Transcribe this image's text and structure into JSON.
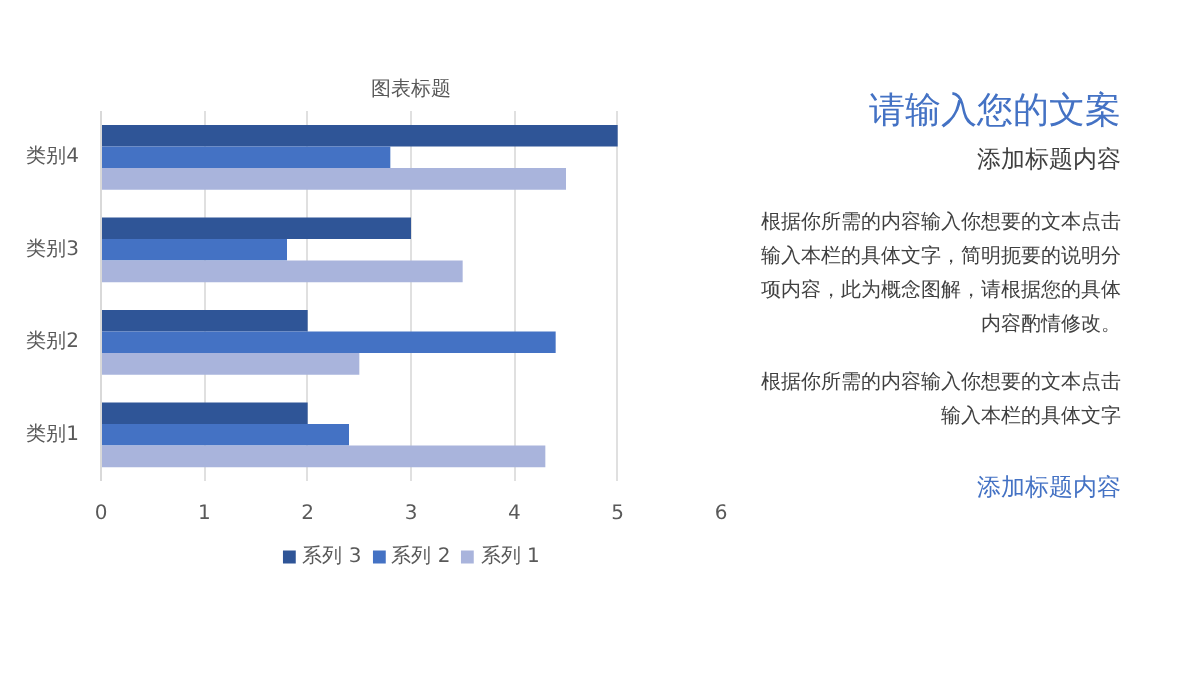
{
  "chart_data": [
    {
      "type": "bar",
      "orientation": "horizontal",
      "title": "图表标题",
      "categories": [
        "类别4",
        "类别3",
        "类别2",
        "类别1"
      ],
      "series": [
        {
          "name": "系列 3",
          "color": "#2f5597",
          "values": [
            5,
            3,
            2,
            2
          ]
        },
        {
          "name": "系列 2",
          "color": "#4472c4",
          "values": [
            2.8,
            1.8,
            4.4,
            2.4
          ]
        },
        {
          "name": "系列 1",
          "color": "#a9b4dc",
          "values": [
            4.5,
            3.5,
            2.5,
            4.3
          ]
        }
      ],
      "xlim": [
        0,
        6
      ],
      "xticks": [
        0,
        1,
        2,
        3,
        4,
        5,
        6
      ],
      "grid": "x",
      "legend": "bottom"
    },
    {
      "type": "other",
      "title": "请输入您的文案",
      "subtitle": "添加标题内容",
      "annotations": [
        "根据你所需的内容输入你想要的文本点击输入本栏的具体文字，简明扼要的说明分项内容，此为概念图解，请根据您的具体内容酌情修改。",
        "根据你所需的内容输入你想要的文本点击输入本栏的具体文字",
        "添加标题内容"
      ]
    }
  ]
}
